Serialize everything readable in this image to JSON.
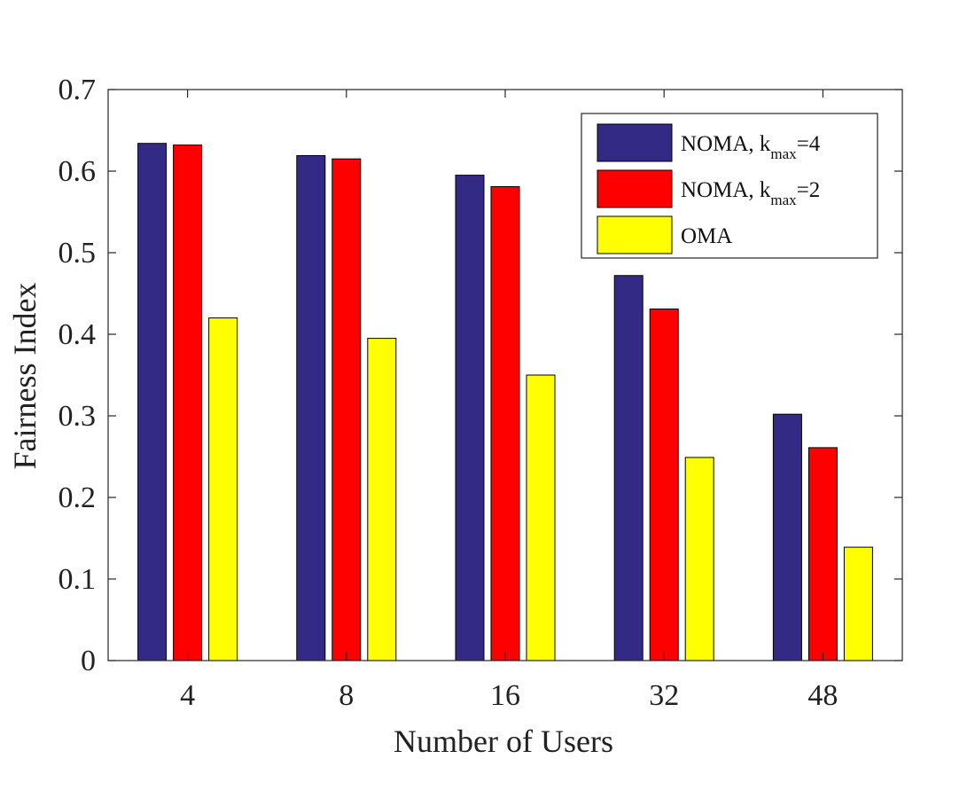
{
  "chart_data": {
    "type": "bar",
    "title": "",
    "xlabel": "Number of Users",
    "ylabel": "Fairness Index",
    "categories": [
      "4",
      "8",
      "16",
      "32",
      "48"
    ],
    "ylim": [
      0,
      0.7
    ],
    "yticks": [
      0,
      0.1,
      0.2,
      0.3,
      0.4,
      0.5,
      0.6,
      0.7
    ],
    "ytick_labels": [
      "0",
      "0.1",
      "0.2",
      "0.3",
      "0.4",
      "0.5",
      "0.6",
      "0.7"
    ],
    "grid": false,
    "legend_position": "top-right",
    "series": [
      {
        "name": "NOMA, k_max=4",
        "legend_main": "NOMA, k",
        "legend_sub": "max",
        "legend_suffix": "=4",
        "color": "#332A86",
        "values": [
          0.634,
          0.619,
          0.595,
          0.472,
          0.302
        ]
      },
      {
        "name": "NOMA, k_max=2",
        "legend_main": "NOMA, k",
        "legend_sub": "max",
        "legend_suffix": "=2",
        "color": "#FF0000",
        "values": [
          0.632,
          0.615,
          0.581,
          0.431,
          0.261
        ]
      },
      {
        "name": "OMA",
        "legend_main": "OMA",
        "legend_sub": "",
        "legend_suffix": "",
        "color": "#FFFF00",
        "values": [
          0.42,
          0.395,
          0.35,
          0.249,
          0.139
        ]
      }
    ]
  }
}
